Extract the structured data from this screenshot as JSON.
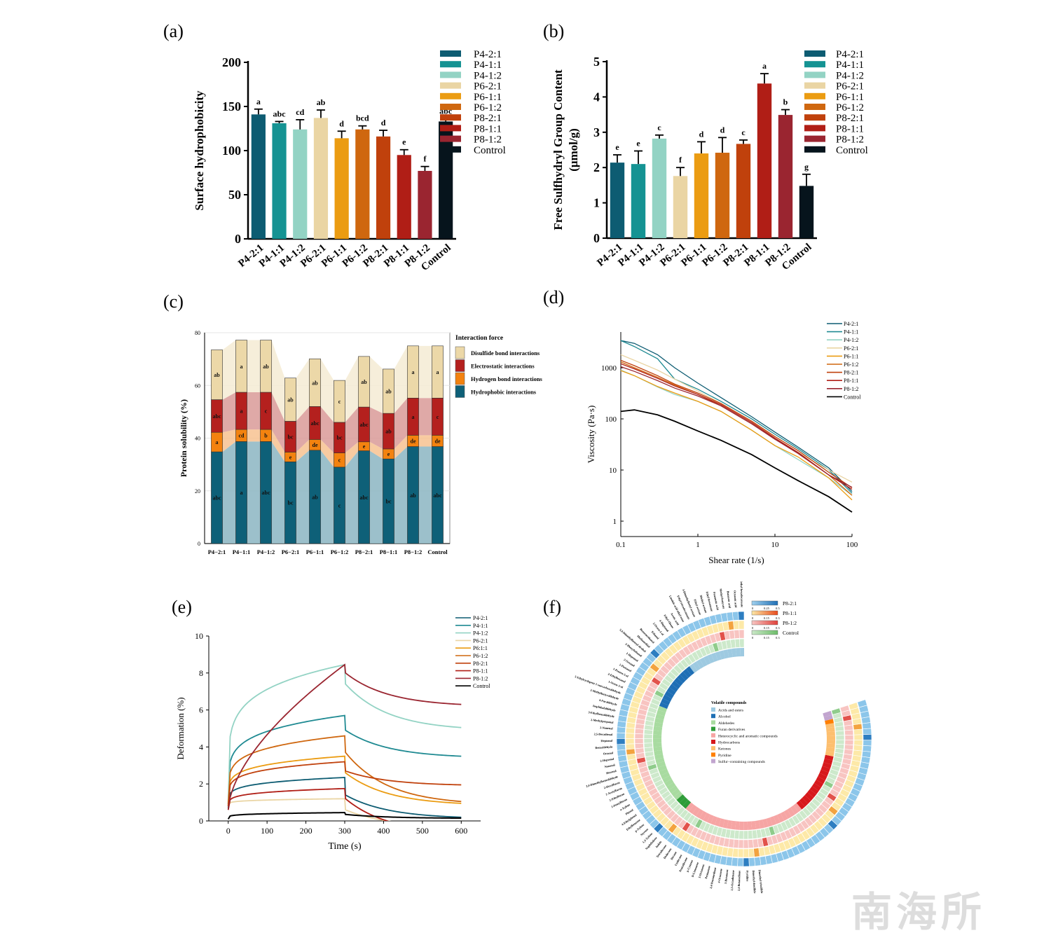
{
  "panel_labels": [
    "(a)",
    "(b)",
    "(c)",
    "(d)",
    "(e)",
    "(f)"
  ],
  "groups": [
    "P4-2:1",
    "P4-1:1",
    "P4-1:2",
    "P6-2:1",
    "P6-1:1",
    "P6-1:2",
    "P8-2:1",
    "P8-1:1",
    "P8-1:2",
    "Control"
  ],
  "group_colors": [
    "#0d5c72",
    "#159393",
    "#93d3c4",
    "#ead5a4",
    "#eb9c12",
    "#cf670f",
    "#c0410c",
    "#b01e16",
    "#9a2530",
    "#06141c"
  ],
  "watermark": "南海所",
  "chart_data": [
    {
      "id": "a",
      "type": "bar",
      "title": "",
      "xlabel": "",
      "ylabel": "Surface hydrophobicity",
      "ylim": [
        0,
        200
      ],
      "yticks": [
        0,
        50,
        100,
        150,
        200
      ],
      "categories": [
        "P4-2:1",
        "P4-1:1",
        "P4-1:2",
        "P6-2:1",
        "P6-1:1",
        "P6-1:2",
        "P8-2:1",
        "P8-1:1",
        "P8-1:2",
        "Control"
      ],
      "values": [
        141,
        131,
        124,
        137,
        114,
        124,
        116,
        95,
        77,
        133
      ],
      "errors": [
        6,
        2,
        11,
        9,
        8,
        4,
        7,
        6,
        5,
        3
      ],
      "sig_letters": [
        "a",
        "abc",
        "cd",
        "ab",
        "d",
        "bcd",
        "d",
        "e",
        "f",
        "abc"
      ],
      "legend": [
        "P4-2:1",
        "P4-1:1",
        "P4-1:2",
        "P6-2:1",
        "P6-1:1",
        "P6-1:2",
        "P8-2:1",
        "P8-1:1",
        "P8-1:2",
        "Control"
      ],
      "legend_position": "top-right"
    },
    {
      "id": "b",
      "type": "bar",
      "title": "",
      "xlabel": "",
      "ylabel": "Free Sulfhydryl Group Content",
      "ylabel2": "(μmol/g)",
      "ylim": [
        0,
        5
      ],
      "yticks": [
        0,
        1,
        2,
        3,
        4,
        5
      ],
      "categories": [
        "P4-2:1",
        "P4-1:1",
        "P4-1:2",
        "P6-2:1",
        "P6-1:1",
        "P6-1:2",
        "P8-2:1",
        "P8-1:1",
        "P8-1:2",
        "Control"
      ],
      "values": [
        2.14,
        2.1,
        2.82,
        1.76,
        2.4,
        2.42,
        2.67,
        4.38,
        3.49,
        1.48
      ],
      "errors": [
        0.22,
        0.37,
        0.1,
        0.24,
        0.33,
        0.43,
        0.11,
        0.28,
        0.15,
        0.33
      ],
      "sig_letters": [
        "e",
        "e",
        "c",
        "f",
        "d",
        "d",
        "c",
        "a",
        "b",
        "g"
      ],
      "legend": [
        "P4-2:1",
        "P4-1:1",
        "P4-1:2",
        "P6-2:1",
        "P6-1:1",
        "P6-1:2",
        "P8-2:1",
        "P8-1:1",
        "P8-1:2",
        "Control"
      ],
      "legend_position": "top-right"
    },
    {
      "id": "c",
      "type": "bar",
      "stacked": true,
      "title": "",
      "xlabel": "",
      "ylabel": "Protein solubility (%)",
      "ylim": [
        0,
        80
      ],
      "yticks": [
        0,
        20,
        40,
        60,
        80
      ],
      "grid": true,
      "categories": [
        "P4−2:1",
        "P4−1:1",
        "P4−1:2",
        "P6−2:1",
        "P6−1:1",
        "P6−1:2",
        "P8−2:1",
        "P8−1:1",
        "P8−1:2",
        "Control"
      ],
      "legend_title": "Interaction force",
      "legend_position": "right",
      "series": [
        {
          "name": "Hydrophobic interactions",
          "color": "#0e6078",
          "band_color": "#8bb5c2",
          "values": [
            34.8,
            38.7,
            38.7,
            31.0,
            35.4,
            29.0,
            35.2,
            32.1,
            36.8,
            36.8
          ],
          "letters": [
            "abc",
            "a",
            "abc",
            "bc",
            "ab",
            "c",
            "abc",
            "bc",
            "ab",
            "abc"
          ]
        },
        {
          "name": "Hydrogen bond interactions",
          "color": "#f3820f",
          "band_color": "#f7c290",
          "values": [
            7.4,
            4.6,
            4.6,
            3.7,
            4.1,
            5.4,
            3.4,
            3.8,
            4.3,
            4.3
          ],
          "letters": [
            "a",
            "cd",
            "b",
            "e",
            "de",
            "c",
            "e",
            "e",
            "de",
            "de"
          ]
        },
        {
          "name": "Electrostatic interactions",
          "color": "#b4201e",
          "band_color": "#d99a98",
          "values": [
            12.4,
            14.1,
            14.1,
            11.7,
            12.5,
            11.6,
            13.2,
            13.5,
            14.1,
            14.1
          ],
          "letters": [
            "abc",
            "a",
            "c",
            "bc",
            "abc",
            "bc",
            "abc",
            "ab",
            "a",
            "c"
          ]
        },
        {
          "name": "Disulfide bond interactions",
          "color": "#ecd8a8",
          "band_color": "#f5ebd3",
          "values": [
            18.9,
            19.8,
            19.8,
            16.4,
            18.1,
            15.9,
            19.2,
            16.8,
            19.8,
            19.8
          ],
          "letters": [
            "ab",
            "a",
            "ab",
            "ab",
            "ab",
            "c",
            "ab",
            "ab",
            "a",
            "a"
          ]
        }
      ]
    },
    {
      "id": "d",
      "type": "line",
      "title": "",
      "xlabel": "Shear rate (1/s)",
      "ylabel": "Viscosity (Pa·s)",
      "xscale": "log",
      "yscale": "log",
      "xlim": [
        0.1,
        100
      ],
      "ylim": [
        0.5,
        5000
      ],
      "xticks": [
        0.1,
        1,
        10,
        100
      ],
      "xtick_labels": [
        "0.1",
        "1",
        "10",
        "100"
      ],
      "yticks": [
        1,
        10,
        100,
        1000
      ],
      "ytick_labels": [
        "1",
        "10",
        "100",
        "1000"
      ],
      "legend_position": "top-right",
      "x": [
        0.1,
        0.15,
        0.3,
        0.5,
        1,
        2,
        5,
        10,
        20,
        50,
        100
      ],
      "series": [
        {
          "name": "P4-2:1",
          "values": [
            3400,
            3000,
            1800,
            1000,
            500,
            260,
            110,
            55,
            28,
            11,
            3.8
          ]
        },
        {
          "name": "P4-1:1",
          "values": [
            3400,
            2600,
            1500,
            600,
            380,
            220,
            100,
            50,
            26,
            10,
            3.5
          ]
        },
        {
          "name": "P4-1:2",
          "values": [
            900,
            700,
            420,
            300,
            220,
            140,
            60,
            30,
            16,
            7,
            3.2
          ]
        },
        {
          "name": "P6-2:1",
          "values": [
            1800,
            1400,
            900,
            600,
            350,
            200,
            90,
            42,
            22,
            10,
            5.8
          ]
        },
        {
          "name": "P6-1:1",
          "values": [
            880,
            700,
            430,
            320,
            220,
            140,
            60,
            30,
            18,
            7,
            2.6
          ]
        },
        {
          "name": "P6-1:2",
          "values": [
            1300,
            1000,
            650,
            460,
            300,
            180,
            80,
            40,
            22,
            8,
            3.2
          ]
        },
        {
          "name": "P8-2:1",
          "values": [
            1400,
            1100,
            700,
            480,
            320,
            200,
            90,
            45,
            24,
            9,
            4.5
          ]
        },
        {
          "name": "P8-1:1",
          "values": [
            1200,
            950,
            620,
            440,
            300,
            190,
            85,
            42,
            22,
            8,
            4.2
          ]
        },
        {
          "name": "P8-1:2",
          "values": [
            1050,
            850,
            560,
            400,
            280,
            180,
            80,
            40,
            21,
            8,
            4.6
          ]
        },
        {
          "name": "Control",
          "values": [
            140,
            150,
            120,
            90,
            58,
            38,
            20,
            11,
            6.2,
            3.0,
            1.5
          ]
        }
      ]
    },
    {
      "id": "e",
      "type": "line",
      "title": "",
      "xlabel": "Time (s)",
      "ylabel": "Deformation (%)",
      "xlim": [
        -50,
        650
      ],
      "ylim": [
        0,
        10
      ],
      "xticks": [
        0,
        100,
        200,
        300,
        400,
        500,
        600
      ],
      "yticks": [
        0,
        2,
        4,
        6,
        8,
        10
      ],
      "legend_position": "top-right",
      "legend": [
        "P4-2:1",
        "P4-1:1",
        "P4-1:2",
        "P6-2:1",
        "P6:1:1",
        "P6-1:2",
        "P8-2:1",
        "P8-1:1",
        "P8-1:2",
        "Control"
      ],
      "series": [
        {
          "name": "P4-2:1",
          "start": 0.7,
          "peak": 2.35,
          "after_drop": 1.4,
          "end": 0.2
        },
        {
          "name": "P4-1:1",
          "start": 0.9,
          "peak": 5.7,
          "after_drop": 4.9,
          "end": 3.5
        },
        {
          "name": "P4-1:2",
          "start": 1.0,
          "peak": 8.45,
          "after_drop": 7.4,
          "end": 5.05
        },
        {
          "name": "P6-2:1",
          "start": 0.8,
          "peak": 1.2,
          "after_drop": 0.6,
          "end": -0.3
        },
        {
          "name": "P6:1:1",
          "start": 0.9,
          "peak": 3.5,
          "after_drop": 2.6,
          "end": 0.95
        },
        {
          "name": "P6-1:2",
          "start": 0.8,
          "peak": 4.6,
          "after_drop": 3.7,
          "end": 1.05
        },
        {
          "name": "P8-2:1",
          "start": 0.8,
          "peak": 3.2,
          "after_drop": 2.7,
          "end": 1.95
        },
        {
          "name": "P8-1:1",
          "start": 0.6,
          "peak": 1.75,
          "after_drop": 1.2,
          "end": -0.6
        },
        {
          "name": "P8-1:2",
          "start": 0.6,
          "peak": 8.45,
          "after_drop": 8.0,
          "end": 6.3
        },
        {
          "name": "Control",
          "start": 0.1,
          "peak": 0.45,
          "after_drop": 0.35,
          "end": 0.15
        }
      ]
    },
    {
      "id": "f",
      "type": "heatmap",
      "layout": "circular",
      "title": "",
      "rings": [
        {
          "name": "P8-2:1",
          "scale": [
            0,
            0.25,
            0.5
          ],
          "color_low": "#9fd0ee",
          "color_high": "#1f6fb5"
        },
        {
          "name": "P8-1:1",
          "scale": [
            0,
            0.15,
            0.3
          ],
          "color_low": "#fbe8a6",
          "color_high": "#e84a1c"
        },
        {
          "name": "P8-1:2",
          "scale": [
            0,
            0.15,
            0.3
          ],
          "color_low": "#f7c6c3",
          "color_high": "#e0403a"
        },
        {
          "name": "Control",
          "scale": [
            0,
            0.15,
            0.3
          ],
          "color_low": "#cbe8c8",
          "color_high": "#6dbd6a"
        }
      ],
      "legend_title": "Volatile compounds",
      "categories": [
        {
          "name": "Acids and esters",
          "color": "#9ecae1"
        },
        {
          "name": "Alcohol",
          "color": "#1f6fb5"
        },
        {
          "name": "Aldehedes",
          "color": "#a8dba0"
        },
        {
          "name": "Furan derivatives",
          "color": "#2e9c38"
        },
        {
          "name": "Heterocyclic and aromatic compounds",
          "color": "#f6a5a4"
        },
        {
          "name": "Hydrocarbons",
          "color": "#d7191c"
        },
        {
          "name": "Ketones",
          "color": "#fdbf6f"
        },
        {
          "name": "Pyridine",
          "color": "#ff7f00"
        },
        {
          "name": "Sulfur−containing compounds",
          "color": "#c2a5cf"
        }
      ],
      "category_counts": [
        14,
        12,
        24,
        3,
        30,
        15,
        8,
        1,
        2
      ],
      "compound_labels_sample": [
        "Methyl hexadecanoate",
        "Octanoic acid",
        "Butanoic acid",
        "Methyl butyrate",
        "Pentanoic acid",
        "Ethyl hexanoate",
        "Methyl acetate",
        "Ethyl acetate",
        "3-Dimethylbutyl acetate",
        "Ethyl tetradecanoate",
        "Linoleic acid ethyl ester",
        "Acetic acid",
        "Ethyl Oleate",
        "4-Heptanol",
        "2-Octen-1-ol",
        "Ethanol",
        "Benzeneethanol",
        "Methanethiol",
        "3,4-Dimethylbenzyl alcohol",
        "2-Phenylethanol",
        "1-Heptanol",
        "2-Octanol",
        "2-Pentanol",
        "1-Penten-3-ol",
        "2-Ethylhexanal",
        "1-Octen-3-ol",
        "5-Ethylcyclopent-1-enecarboxaldehyde",
        "3-Methylbutyraldehyde",
        "4-Furaldehyde",
        "Isophthalaldehyde",
        "3-Ethylbenzaldehyde",
        "2-Methylpropanal",
        "2-Nonenal",
        "2,5-Decadienal",
        "Heptanal",
        "Benzaldehyde",
        "Octanal",
        "2-Heptenal",
        "Nonanal",
        "Hexanal",
        "2,4-Dimethylbenzaldehyde",
        "2-Hexylfuran",
        "2-Acetylfuran",
        "2-Ethylfuran",
        "2-Pentylfuran",
        "o-Xylene",
        "Phenol",
        "4-Ethylphenol",
        "Ethylbenzene",
        "p-Xylene",
        "Styrene",
        "1,3-Xylene",
        "Naphthalene",
        "Indole",
        "Tetradecane",
        "Dodecane",
        "Decane",
        "Undecane",
        "Pentadecane",
        "p-Cymene",
        "D-Limonene",
        "3-Octanone",
        "Pentanone",
        "2,4-Pentanedione",
        "4-Octanone",
        "3-Butanone",
        "2,3-Octadienone",
        "2,4-Butanedione",
        "Pyridine",
        "Dimethyl disulfide",
        "Dimethyl trisulfide"
      ]
    }
  ]
}
